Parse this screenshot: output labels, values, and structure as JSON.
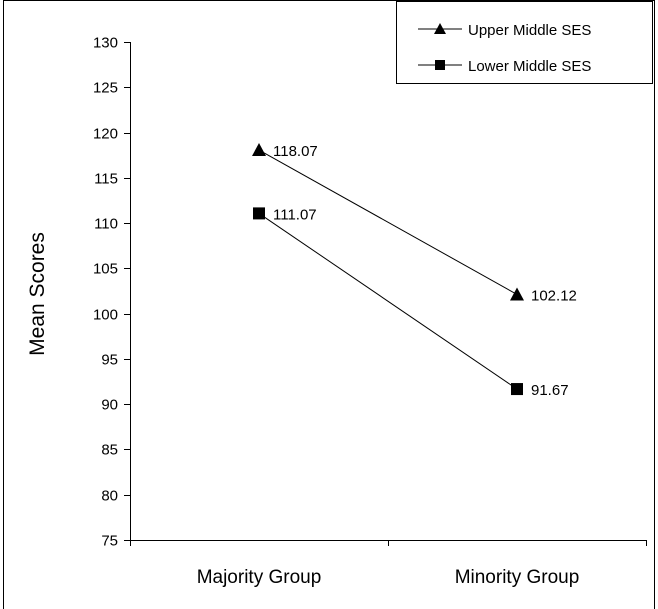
{
  "chart_data": {
    "type": "line",
    "categories": [
      "Majority Group",
      "Minority Group"
    ],
    "ylabel": "Mean Scores",
    "ylim": [
      75,
      130
    ],
    "yticks": [
      75,
      80,
      85,
      90,
      95,
      100,
      105,
      110,
      115,
      120,
      125,
      130
    ],
    "grid": false,
    "legend_position": "top-right",
    "series": [
      {
        "name": "Upper Middle SES",
        "marker": "triangle",
        "values": [
          118.07,
          102.12
        ],
        "labels": [
          "118.07",
          "102.12"
        ]
      },
      {
        "name": "Lower Middle SES",
        "marker": "square",
        "values": [
          111.07,
          91.67
        ],
        "labels": [
          "111.07",
          "91.67"
        ]
      }
    ],
    "colors": {
      "line": "#000000",
      "marker": "#000000",
      "background": "#ffffff"
    }
  }
}
